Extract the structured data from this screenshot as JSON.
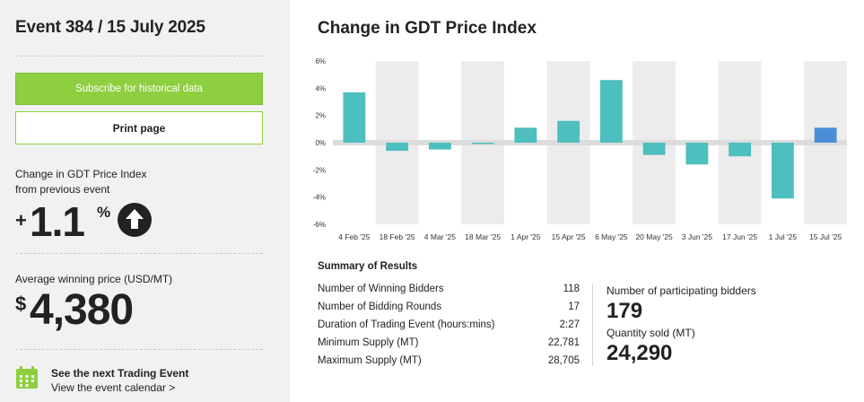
{
  "sidebar": {
    "event_title": "Event 384 / 15 July 2025",
    "subscribe_label": "Subscribe for historical data",
    "print_label": "Print page",
    "change_label_line1": "Change in GDT Price Index",
    "change_label_line2": "from previous event",
    "change_sign": "+",
    "change_value": "1.1",
    "change_unit": "%",
    "change_direction": "up-arrow-icon",
    "avg_price_label": "Average winning price (USD/MT)",
    "avg_price_sign": "$",
    "avg_price_value": "4,380",
    "next_event_title": "See the next Trading Event",
    "next_event_link": "View the event calendar >",
    "calendar_icon": "calendar-icon",
    "accent_color": "#8dcf3f"
  },
  "chart_title": "Change in GDT Price Index",
  "chart_data": {
    "type": "bar",
    "categories": [
      "4 Feb '25",
      "18 Feb '25",
      "4 Mar '25",
      "18 Mar '25",
      "1 Apr '25",
      "15 Apr '25",
      "6 May '25",
      "20 May '25",
      "3 Jun '25",
      "17 Jun '25",
      "1 Jul '25",
      "15 Jul '25"
    ],
    "values": [
      3.7,
      -0.6,
      -0.5,
      -0.1,
      1.1,
      1.6,
      4.6,
      -0.9,
      -1.6,
      -1.0,
      -4.1,
      1.1
    ],
    "ylim": [
      -6,
      6
    ],
    "yticks": [
      6,
      4,
      2,
      0,
      -2,
      -4,
      -6
    ],
    "ytick_labels": [
      "6%",
      "4%",
      "2%",
      "0%",
      "-2%",
      "-4%",
      "-6%"
    ],
    "bar_color": "#4cbfbe",
    "highlight_color": "#4a8fd6",
    "highlight_index": 11,
    "grid": true
  },
  "summary": {
    "title": "Summary of Results",
    "rows": [
      {
        "label": "Number of Winning Bidders",
        "value": "118"
      },
      {
        "label": "Number of Bidding Rounds",
        "value": "17"
      },
      {
        "label": "Duration of Trading Event (hours:mins)",
        "value": "2:27"
      },
      {
        "label": "Minimum Supply (MT)",
        "value": "22,781"
      },
      {
        "label": "Maximum Supply (MT)",
        "value": "28,705"
      }
    ],
    "bidders_label": "Number of participating bidders",
    "bidders_value": "179",
    "qty_label": "Quantity sold (MT)",
    "qty_value": "24,290"
  }
}
